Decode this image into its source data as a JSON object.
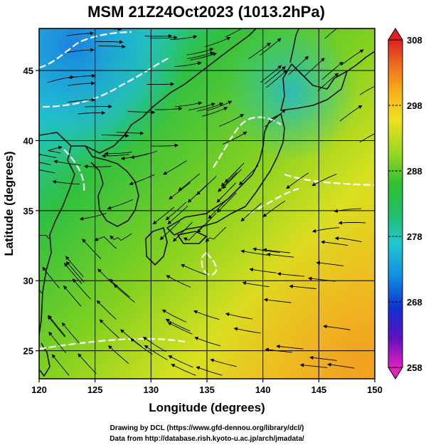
{
  "title": "MSM 21Z24Oct2023 (1013.2hPa)",
  "x_axis": {
    "label": "Longitude (degrees)",
    "range": [
      120,
      150
    ],
    "ticks": [
      120,
      125,
      130,
      135,
      140,
      145,
      150
    ]
  },
  "y_axis": {
    "label": "Latitude  (degrees)",
    "range": [
      23,
      48
    ],
    "ticks": [
      25,
      30,
      35,
      40,
      45
    ]
  },
  "colorbar": {
    "range": [
      258,
      308
    ],
    "ticks": [
      258,
      268,
      278,
      288,
      298,
      308
    ],
    "colors": [
      "#e020c0",
      "#6010c0",
      "#1030d0",
      "#1090e0",
      "#20c8d0",
      "#20c070",
      "#30c030",
      "#a0d820",
      "#f0e020",
      "#f8b018",
      "#f07020",
      "#e02020"
    ]
  },
  "credits": {
    "line1": "Drawing by DCL (https://www.gfd-dennou.org/library/dcl/)",
    "line2": "Data from http://database.rish.kyoto-u.ac.jp/arch/jmadata/"
  },
  "colors": {
    "land_outline": "#111111",
    "contour": "#ffffff",
    "streamline": "#000000",
    "grid": "#000000"
  }
}
